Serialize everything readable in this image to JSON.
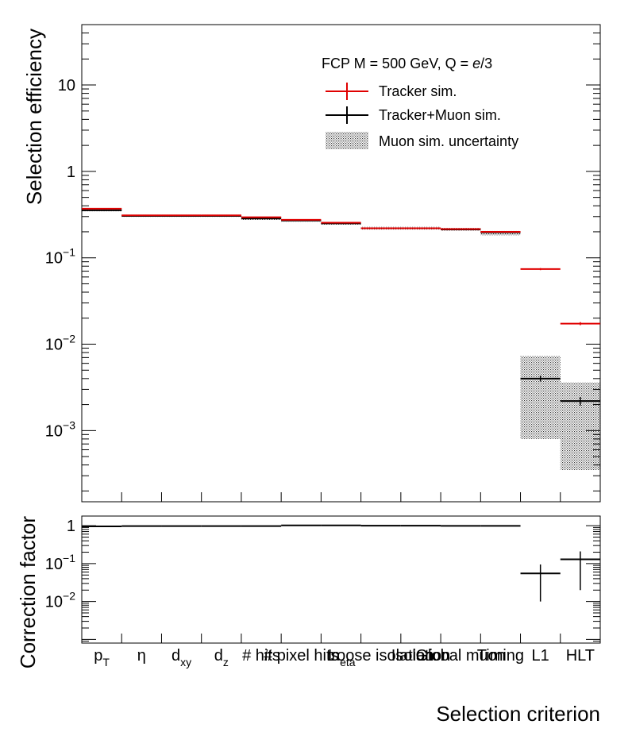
{
  "chart_data": [
    {
      "type": "step",
      "panel": "upper",
      "scale": "log",
      "ylabel": "Selection efficiency",
      "ylim": [
        0.00015,
        50
      ],
      "y_ticks": [
        {
          "value": 10,
          "base": "10",
          "exp": ""
        },
        {
          "value": 1,
          "base": "1",
          "exp": ""
        },
        {
          "value": 0.1,
          "base": "10",
          "exp": "−1"
        },
        {
          "value": 0.01,
          "base": "10",
          "exp": "−2"
        },
        {
          "value": 0.001,
          "base": "10",
          "exp": "−3"
        }
      ],
      "categories": [
        "pT",
        "η",
        "dxy",
        "dz",
        "# hits",
        "# pixel hits",
        "m_eta",
        "Loose isolation",
        "Isolation",
        "Global muon",
        "Timing",
        "L1",
        "HLT"
      ],
      "series": [
        {
          "name": "Tracker sim.",
          "color": "#e00000",
          "values": [
            0.37,
            0.31,
            0.31,
            0.31,
            0.295,
            0.275,
            0.255,
            0.22,
            0.22,
            0.215,
            0.2,
            0.074,
            0.0173
          ],
          "errors": [
            0.004,
            0.003,
            0.003,
            0.003,
            0.003,
            0.003,
            0.003,
            0.003,
            0.003,
            0.003,
            0.003,
            0.002,
            0.0007
          ]
        },
        {
          "name": "Tracker+Muon sim.",
          "color": "#000000",
          "values": [
            0.355,
            0.305,
            0.305,
            0.305,
            0.285,
            0.27,
            0.25,
            0.22,
            0.22,
            0.213,
            0.197,
            0.004,
            0.0022
          ],
          "errors": [
            0.003,
            0.003,
            0.003,
            0.003,
            0.003,
            0.003,
            0.003,
            0.003,
            0.003,
            0.003,
            0.003,
            0.0003,
            0.00025
          ]
        },
        {
          "name": "Muon sim. uncertainty",
          "color": "#777777",
          "band_low": [
            0.345,
            0.298,
            0.298,
            0.298,
            0.275,
            0.262,
            0.242,
            0.212,
            0.212,
            0.205,
            0.182,
            0.0008,
            0.00035
          ],
          "band_high": [
            0.372,
            0.315,
            0.315,
            0.315,
            0.298,
            0.28,
            0.26,
            0.228,
            0.228,
            0.222,
            0.205,
            0.0073,
            0.0036
          ]
        }
      ],
      "legend": {
        "header_prefix": "FCP M = 500 GeV, Q = ",
        "header_italic": "e",
        "header_suffix": "/3",
        "entries": [
          "Tracker sim.",
          "Tracker+Muon sim.",
          "Muon sim. uncertainty"
        ],
        "placement": "top-right"
      }
    },
    {
      "type": "errorbar",
      "panel": "lower",
      "scale": "log",
      "ylabel": "Correction factor",
      "ylim": [
        0.0008,
        1.8
      ],
      "y_ticks": [
        {
          "value": 1,
          "base": "1",
          "exp": ""
        },
        {
          "value": 0.1,
          "base": "10",
          "exp": "−1"
        },
        {
          "value": 0.01,
          "base": "10",
          "exp": "−2"
        }
      ],
      "values": [
        0.96,
        0.98,
        0.98,
        0.98,
        0.98,
        1.02,
        1.02,
        1.0,
        1.0,
        0.99,
        0.99,
        0.055,
        0.13
      ],
      "err_low": [
        0.02,
        0.02,
        0.02,
        0.02,
        0.02,
        0.02,
        0.02,
        0.02,
        0.02,
        0.02,
        0.02,
        0.045,
        0.11
      ],
      "err_high": [
        0.02,
        0.02,
        0.02,
        0.02,
        0.02,
        0.02,
        0.02,
        0.02,
        0.02,
        0.02,
        0.02,
        0.04,
        0.08
      ],
      "xlabel": "Selection criterion",
      "tick_labels": [
        {
          "main": "p",
          "sub": "T"
        },
        {
          "main": "η",
          "sub": ""
        },
        {
          "main": "d",
          "sub": "xy"
        },
        {
          "main": "d",
          "sub": "z"
        },
        {
          "main": "# hits",
          "sub": ""
        },
        {
          "main": "# pixel hits",
          "sub": ""
        },
        {
          "main": "m",
          "sub": "eta"
        },
        {
          "main": "Loose isolation",
          "sub": ""
        },
        {
          "main": "Isolation",
          "sub": ""
        },
        {
          "main": "Global muon",
          "sub": ""
        },
        {
          "main": "Timing",
          "sub": ""
        },
        {
          "main": "L1",
          "sub": ""
        },
        {
          "main": "HLT",
          "sub": ""
        }
      ]
    }
  ]
}
